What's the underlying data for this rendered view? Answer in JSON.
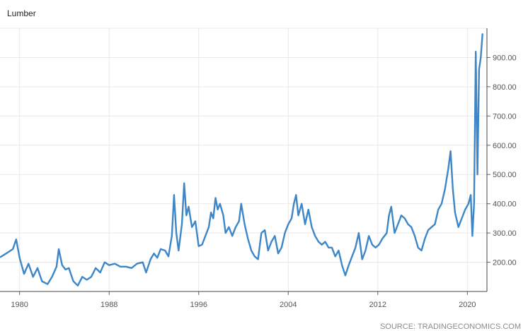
{
  "title": "Lumber",
  "source": "SOURCE: TRADINGECONOMICS.COM",
  "chart_data": {
    "type": "line",
    "title": "Lumber",
    "xlabel": "",
    "ylabel": "",
    "x_tick_labels": [
      "1980",
      "1988",
      "1996",
      "2004",
      "2012",
      "2020"
    ],
    "y_tick_labels": [
      "200.00",
      "300.00",
      "400.00",
      "500.00",
      "600.00",
      "700.00",
      "800.00",
      "900.00"
    ],
    "xlim": [
      1978.25,
      2021.75
    ],
    "ylim": [
      100,
      1000
    ],
    "grid": true,
    "y_axis_side": "right",
    "colors": {
      "line": "#3d87c8",
      "grid": "#e9e9e9"
    },
    "series": [
      {
        "values": [
          [
            1978.3,
            218
          ],
          [
            1978.6,
            225
          ],
          [
            1979.0,
            235
          ],
          [
            1979.4,
            245
          ],
          [
            1979.7,
            278
          ],
          [
            1980.0,
            215
          ],
          [
            1980.4,
            160
          ],
          [
            1980.8,
            195
          ],
          [
            1981.2,
            150
          ],
          [
            1981.6,
            180
          ],
          [
            1982.0,
            135
          ],
          [
            1982.5,
            125
          ],
          [
            1982.9,
            150
          ],
          [
            1983.3,
            185
          ],
          [
            1983.5,
            245
          ],
          [
            1983.8,
            190
          ],
          [
            1984.1,
            175
          ],
          [
            1984.4,
            180
          ],
          [
            1984.8,
            135
          ],
          [
            1985.2,
            120
          ],
          [
            1985.6,
            150
          ],
          [
            1986.0,
            140
          ],
          [
            1986.4,
            150
          ],
          [
            1986.8,
            180
          ],
          [
            1987.2,
            165
          ],
          [
            1987.6,
            200
          ],
          [
            1988.0,
            190
          ],
          [
            1988.5,
            195
          ],
          [
            1989.0,
            185
          ],
          [
            1989.5,
            185
          ],
          [
            1990.0,
            180
          ],
          [
            1990.5,
            195
          ],
          [
            1991.0,
            200
          ],
          [
            1991.3,
            165
          ],
          [
            1991.7,
            210
          ],
          [
            1992.0,
            230
          ],
          [
            1992.3,
            215
          ],
          [
            1992.6,
            245
          ],
          [
            1993.0,
            240
          ],
          [
            1993.3,
            220
          ],
          [
            1993.6,
            290
          ],
          [
            1993.8,
            430
          ],
          [
            1994.0,
            300
          ],
          [
            1994.2,
            240
          ],
          [
            1994.5,
            330
          ],
          [
            1994.7,
            470
          ],
          [
            1994.9,
            360
          ],
          [
            1995.1,
            390
          ],
          [
            1995.4,
            320
          ],
          [
            1995.7,
            340
          ],
          [
            1996.0,
            255
          ],
          [
            1996.3,
            260
          ],
          [
            1996.6,
            290
          ],
          [
            1996.9,
            320
          ],
          [
            1997.1,
            370
          ],
          [
            1997.3,
            350
          ],
          [
            1997.5,
            420
          ],
          [
            1997.7,
            380
          ],
          [
            1997.9,
            400
          ],
          [
            1998.2,
            360
          ],
          [
            1998.4,
            300
          ],
          [
            1998.7,
            320
          ],
          [
            1999.0,
            290
          ],
          [
            1999.3,
            320
          ],
          [
            1999.6,
            340
          ],
          [
            1999.8,
            400
          ],
          [
            2000.1,
            330
          ],
          [
            2000.4,
            280
          ],
          [
            2000.7,
            240
          ],
          [
            2001.0,
            220
          ],
          [
            2001.3,
            210
          ],
          [
            2001.6,
            300
          ],
          [
            2001.9,
            310
          ],
          [
            2002.2,
            240
          ],
          [
            2002.5,
            270
          ],
          [
            2002.8,
            290
          ],
          [
            2003.1,
            230
          ],
          [
            2003.4,
            250
          ],
          [
            2003.7,
            300
          ],
          [
            2004.0,
            330
          ],
          [
            2004.3,
            350
          ],
          [
            2004.5,
            400
          ],
          [
            2004.7,
            430
          ],
          [
            2004.9,
            360
          ],
          [
            2005.2,
            400
          ],
          [
            2005.5,
            330
          ],
          [
            2005.8,
            380
          ],
          [
            2006.1,
            320
          ],
          [
            2006.4,
            290
          ],
          [
            2006.7,
            270
          ],
          [
            2007.0,
            260
          ],
          [
            2007.3,
            270
          ],
          [
            2007.6,
            250
          ],
          [
            2007.9,
            250
          ],
          [
            2008.2,
            220
          ],
          [
            2008.5,
            240
          ],
          [
            2008.8,
            190
          ],
          [
            2009.1,
            155
          ],
          [
            2009.4,
            190
          ],
          [
            2009.7,
            220
          ],
          [
            2010.0,
            250
          ],
          [
            2010.3,
            300
          ],
          [
            2010.6,
            210
          ],
          [
            2010.9,
            240
          ],
          [
            2011.2,
            290
          ],
          [
            2011.5,
            260
          ],
          [
            2011.8,
            250
          ],
          [
            2012.1,
            260
          ],
          [
            2012.4,
            280
          ],
          [
            2012.8,
            300
          ],
          [
            2013.0,
            360
          ],
          [
            2013.2,
            390
          ],
          [
            2013.5,
            300
          ],
          [
            2013.8,
            330
          ],
          [
            2014.1,
            360
          ],
          [
            2014.4,
            350
          ],
          [
            2014.7,
            330
          ],
          [
            2015.0,
            320
          ],
          [
            2015.3,
            290
          ],
          [
            2015.6,
            250
          ],
          [
            2015.9,
            240
          ],
          [
            2016.2,
            280
          ],
          [
            2016.5,
            310
          ],
          [
            2016.8,
            320
          ],
          [
            2017.1,
            330
          ],
          [
            2017.4,
            380
          ],
          [
            2017.7,
            400
          ],
          [
            2018.0,
            450
          ],
          [
            2018.3,
            520
          ],
          [
            2018.5,
            580
          ],
          [
            2018.7,
            450
          ],
          [
            2018.9,
            370
          ],
          [
            2019.2,
            320
          ],
          [
            2019.5,
            350
          ],
          [
            2019.8,
            380
          ],
          [
            2020.1,
            400
          ],
          [
            2020.3,
            430
          ],
          [
            2020.45,
            290
          ],
          [
            2020.6,
            400
          ],
          [
            2020.75,
            920
          ],
          [
            2020.9,
            500
          ],
          [
            2021.05,
            860
          ],
          [
            2021.2,
            900
          ],
          [
            2021.35,
            980
          ]
        ]
      }
    ]
  }
}
